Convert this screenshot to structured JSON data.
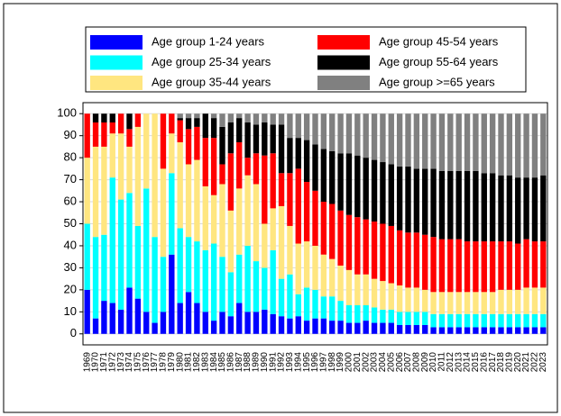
{
  "chart_data": {
    "type": "stacked_bar",
    "categories": [
      "1969",
      "1970",
      "1971",
      "1972",
      "1973",
      "1974",
      "1975",
      "1976",
      "1977",
      "1978",
      "1979",
      "1980",
      "1981",
      "1982",
      "1983",
      "1984",
      "1985",
      "1986",
      "1987",
      "1988",
      "1989",
      "1990",
      "1991",
      "1992",
      "1993",
      "1994",
      "1995",
      "1996",
      "1997",
      "1998",
      "1999",
      "2000",
      "2001",
      "2002",
      "2003",
      "2004",
      "2005",
      "2006",
      "2007",
      "2008",
      "2009",
      "2010",
      "2011",
      "2012",
      "2013",
      "2014",
      "2015",
      "2016",
      "2017",
      "2018",
      "2019",
      "2020",
      "2021",
      "2022",
      "2023"
    ],
    "series": [
      {
        "name": "Age group 1-24 years",
        "color": "#0000ff",
        "values": [
          20,
          7,
          15,
          14,
          11,
          21,
          16,
          10,
          5,
          10,
          36,
          14,
          19,
          14,
          10,
          6,
          10,
          8,
          14,
          10,
          10,
          11,
          9,
          8,
          7,
          8,
          6,
          7,
          7,
          6,
          6,
          5,
          5,
          6,
          5,
          5,
          5,
          4,
          4,
          4,
          4,
          3,
          3,
          3,
          3,
          3,
          3,
          3,
          3,
          3,
          3,
          3,
          3,
          3,
          3
        ]
      },
      {
        "name": "Age group 25-34 years",
        "color": "#00ffff",
        "values": [
          30,
          37,
          30,
          57,
          50,
          43,
          33,
          56,
          39,
          25,
          37,
          34,
          25,
          28,
          28,
          35,
          25,
          20,
          22,
          30,
          23,
          19,
          29,
          17,
          20,
          10,
          15,
          13,
          10,
          11,
          9,
          8,
          8,
          7,
          7,
          6,
          6,
          6,
          6,
          6,
          6,
          6,
          6,
          6,
          6,
          6,
          6,
          6,
          6,
          6,
          6,
          6,
          6,
          6,
          6
        ]
      },
      {
        "name": "Age group 35-44 years",
        "color": "#ffe680",
        "values": [
          30,
          41,
          40,
          20,
          30,
          21,
          45,
          34,
          56,
          40,
          18,
          39,
          33,
          37,
          29,
          22,
          33,
          28,
          30,
          32,
          35,
          20,
          19,
          33,
          22,
          23,
          21,
          20,
          19,
          17,
          16,
          16,
          14,
          14,
          13,
          13,
          12,
          12,
          11,
          11,
          10,
          10,
          10,
          10,
          10,
          10,
          10,
          10,
          10,
          11,
          11,
          11,
          12,
          12,
          12
        ]
      },
      {
        "name": "Age group 45-54 years",
        "color": "#ff0000",
        "values": [
          20,
          11,
          11,
          5,
          9,
          8,
          6,
          0,
          0,
          25,
          9,
          10,
          16,
          15,
          22,
          26,
          9,
          26,
          21,
          8,
          14,
          31,
          25,
          15,
          24,
          34,
          27,
          25,
          24,
          25,
          25,
          25,
          26,
          25,
          26,
          26,
          26,
          25,
          25,
          25,
          25,
          25,
          24,
          24,
          24,
          23,
          23,
          23,
          23,
          22,
          22,
          21,
          22,
          21,
          21
        ]
      },
      {
        "name": "Age group 55-64 years",
        "color": "#000000",
        "values": [
          0,
          4,
          4,
          4,
          0,
          7,
          0,
          0,
          0,
          0,
          0,
          1,
          5,
          4,
          11,
          9,
          17,
          14,
          11,
          16,
          13,
          15,
          13,
          22,
          16,
          14,
          19,
          21,
          24,
          24,
          26,
          28,
          28,
          28,
          28,
          28,
          28,
          29,
          30,
          29,
          30,
          31,
          31,
          31,
          31,
          32,
          32,
          31,
          31,
          30,
          30,
          30,
          28,
          29,
          30
        ]
      },
      {
        "name": "Age group >=65 years",
        "color": "#808080",
        "values": [
          0,
          0,
          0,
          0,
          0,
          0,
          0,
          0,
          0,
          0,
          0,
          2,
          2,
          2,
          0,
          2,
          6,
          4,
          2,
          4,
          5,
          4,
          5,
          5,
          11,
          11,
          12,
          14,
          16,
          17,
          18,
          18,
          19,
          20,
          21,
          22,
          23,
          24,
          24,
          25,
          25,
          25,
          26,
          26,
          26,
          26,
          26,
          27,
          27,
          28,
          28,
          29,
          29,
          29,
          28
        ]
      }
    ],
    "ylim": [
      -5,
      105
    ],
    "yticks": [
      0,
      10,
      20,
      30,
      40,
      50,
      60,
      70,
      80,
      90,
      100
    ],
    "grid": true
  }
}
